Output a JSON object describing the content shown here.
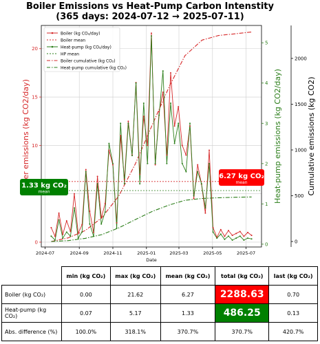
{
  "title_line1": "Boiler Emissions vs Heat-Pump Carbon Intenstity",
  "title_line2": "(365 days: 2024-07-12 → 2025-07-11)",
  "colors": {
    "boiler": "#d62728",
    "heat_pump": "#2a7d18",
    "boiler_badge": "#ff0000",
    "hp_badge": "#008000"
  },
  "callouts": {
    "boiler": {
      "value": "6.27 kg CO₂",
      "label": "mean"
    },
    "heat_pump": {
      "value": "1.33 kg CO₂",
      "label": "mean"
    }
  },
  "chart_data": {
    "type": "line",
    "title": "Boiler Emissions vs Heat-Pump Carbon Intenstity (365 days: 2024-07-12 → 2025-07-11)",
    "xlabel": "Date",
    "ylabel_left": "Boiler emissions (kg CO2/day)",
    "ylabel_mid": "Heat-pump emissions (kg CO2/day)",
    "ylabel_right": "Cumulative emissions (kg CO2)",
    "x_ticks": [
      "2024-07",
      "2024-09",
      "2024-11",
      "2025-01",
      "2025-03",
      "2025-05",
      "2025-07"
    ],
    "y_left_ticks": [
      0,
      5,
      10,
      15,
      20
    ],
    "y_mid_ticks": [
      0,
      1,
      2,
      3,
      4,
      5
    ],
    "y_right_ticks": [
      0,
      500,
      1000,
      1500,
      2000
    ],
    "ylim_left": [
      -0.5,
      22.4
    ],
    "ylim_mid": [
      -0.07,
      5.43
    ],
    "ylim_right": [
      -60,
      2360
    ],
    "xlim": [
      "2024-06-24",
      "2025-07-29"
    ],
    "grid": true,
    "legend_position": "top-left",
    "legend": [
      "Boiler (kg CO₂/day)",
      "Boiler mean",
      "Heat-pump (kg CO₂/day)",
      "HP mean",
      "Boiler cumulative (kg CO₂)",
      "Heat-pump cumulative (kg CO₂)"
    ],
    "series": [
      {
        "name": "Boiler (kg CO₂/day)",
        "axis": "left",
        "dates": [
          "2024-07-12",
          "2024-07-19",
          "2024-07-26",
          "2024-08-02",
          "2024-08-09",
          "2024-08-16",
          "2024-08-23",
          "2024-08-30",
          "2024-09-06",
          "2024-09-13",
          "2024-09-20",
          "2024-09-27",
          "2024-10-04",
          "2024-10-11",
          "2024-10-18",
          "2024-10-25",
          "2024-11-01",
          "2024-11-08",
          "2024-11-15",
          "2024-11-22",
          "2024-11-29",
          "2024-12-06",
          "2024-12-13",
          "2024-12-20",
          "2024-12-27",
          "2025-01-03",
          "2025-01-10",
          "2025-01-17",
          "2025-01-24",
          "2025-01-31",
          "2025-02-07",
          "2025-02-14",
          "2025-02-21",
          "2025-02-28",
          "2025-03-07",
          "2025-03-14",
          "2025-03-21",
          "2025-03-28",
          "2025-04-04",
          "2025-04-11",
          "2025-04-18",
          "2025-04-25",
          "2025-05-02",
          "2025-05-09",
          "2025-05-16",
          "2025-05-23",
          "2025-05-30",
          "2025-06-06",
          "2025-06-13",
          "2025-06-20",
          "2025-06-27",
          "2025-07-04",
          "2025-07-11"
        ],
        "values": [
          1.5,
          0.6,
          3.0,
          0.8,
          2.2,
          1.1,
          5.0,
          0.9,
          1.8,
          7.5,
          3.2,
          1.0,
          6.8,
          2.5,
          4.0,
          9.5,
          8.0,
          2.0,
          11.0,
          6.5,
          12.5,
          9.0,
          16.5,
          7.0,
          13.0,
          10.0,
          21.6,
          8.0,
          13.5,
          15.5,
          9.0,
          17.5,
          12.0,
          14.0,
          10.0,
          9.0,
          12.0,
          4.5,
          8.0,
          6.0,
          3.0,
          9.5,
          1.5,
          0.5,
          1.3,
          0.6,
          1.2,
          0.7,
          0.9,
          1.1,
          0.6,
          1.0,
          0.7
        ]
      },
      {
        "name": "Heat-pump (kg CO₂/day)",
        "axis": "mid",
        "dates": [
          "2024-07-12",
          "2024-07-19",
          "2024-07-26",
          "2024-08-02",
          "2024-08-09",
          "2024-08-16",
          "2024-08-23",
          "2024-08-30",
          "2024-09-06",
          "2024-09-13",
          "2024-09-20",
          "2024-09-27",
          "2024-10-04",
          "2024-10-11",
          "2024-10-18",
          "2024-10-25",
          "2024-11-01",
          "2024-11-08",
          "2024-11-15",
          "2024-11-22",
          "2024-11-29",
          "2024-12-06",
          "2024-12-13",
          "2024-12-20",
          "2024-12-27",
          "2025-01-03",
          "2025-01-10",
          "2025-01-17",
          "2025-01-24",
          "2025-01-31",
          "2025-02-07",
          "2025-02-14",
          "2025-02-21",
          "2025-02-28",
          "2025-03-07",
          "2025-03-14",
          "2025-03-21",
          "2025-03-28",
          "2025-04-04",
          "2025-04-11",
          "2025-04-18",
          "2025-04-25",
          "2025-05-02",
          "2025-05-09",
          "2025-05-16",
          "2025-05-23",
          "2025-05-30",
          "2025-06-06",
          "2025-06-13",
          "2025-06-20",
          "2025-06-27",
          "2025-07-04",
          "2025-07-11"
        ],
        "values": [
          0.2,
          0.1,
          0.6,
          0.15,
          0.3,
          0.2,
          0.9,
          0.15,
          0.3,
          1.8,
          0.5,
          0.2,
          1.5,
          0.5,
          0.8,
          2.5,
          2.0,
          0.4,
          3.0,
          1.5,
          3.0,
          2.2,
          4.0,
          1.5,
          3.5,
          2.0,
          5.17,
          2.0,
          3.2,
          4.3,
          2.0,
          3.5,
          2.5,
          3.0,
          2.0,
          1.8,
          3.0,
          1.2,
          1.8,
          1.5,
          0.9,
          2.0,
          0.3,
          0.15,
          0.25,
          0.12,
          0.2,
          0.1,
          0.15,
          0.2,
          0.1,
          0.15,
          0.13
        ]
      },
      {
        "name": "Boiler mean",
        "axis": "left",
        "value": 6.27
      },
      {
        "name": "HP mean",
        "axis": "mid",
        "value": 1.33
      },
      {
        "name": "Boiler cumulative (kg CO₂)",
        "axis": "right",
        "dates": [
          "2024-07-12",
          "2024-08-12",
          "2024-09-12",
          "2024-10-12",
          "2024-11-12",
          "2024-12-12",
          "2025-01-12",
          "2025-02-12",
          "2025-03-12",
          "2025-04-12",
          "2025-05-12",
          "2025-06-12",
          "2025-07-11"
        ],
        "values": [
          0,
          40,
          120,
          260,
          500,
          850,
          1280,
          1700,
          2030,
          2200,
          2250,
          2270,
          2288.63
        ]
      },
      {
        "name": "Heat-pump cumulative (kg CO₂)",
        "axis": "right",
        "dates": [
          "2024-07-12",
          "2024-08-12",
          "2024-09-12",
          "2024-10-12",
          "2024-11-12",
          "2024-12-12",
          "2025-01-12",
          "2025-02-12",
          "2025-03-12",
          "2025-04-12",
          "2025-05-12",
          "2025-06-12",
          "2025-07-11"
        ],
        "values": [
          0,
          10,
          35,
          75,
          150,
          240,
          330,
          400,
          450,
          470,
          478,
          483,
          486.25
        ]
      }
    ]
  },
  "table": {
    "headers": [
      "min (kg CO₂)",
      "max (kg CO₂)",
      "mean (kg CO₂)",
      "total (kg CO₂)",
      "last (kg CO₂)"
    ],
    "rows": [
      {
        "label": "Boiler (kg CO₂)",
        "cells": [
          "0.00",
          "21.62",
          "6.27",
          "2288.63",
          "0.70"
        ]
      },
      {
        "label": "Heat-pump (kg CO₂)",
        "cells": [
          "0.07",
          "5.17",
          "1.33",
          "486.25",
          "0.13"
        ]
      },
      {
        "label": "Abs. difference (%)",
        "cells": [
          "100.0%",
          "318.1%",
          "370.7%",
          "370.7%",
          "420.7%"
        ]
      }
    ]
  }
}
